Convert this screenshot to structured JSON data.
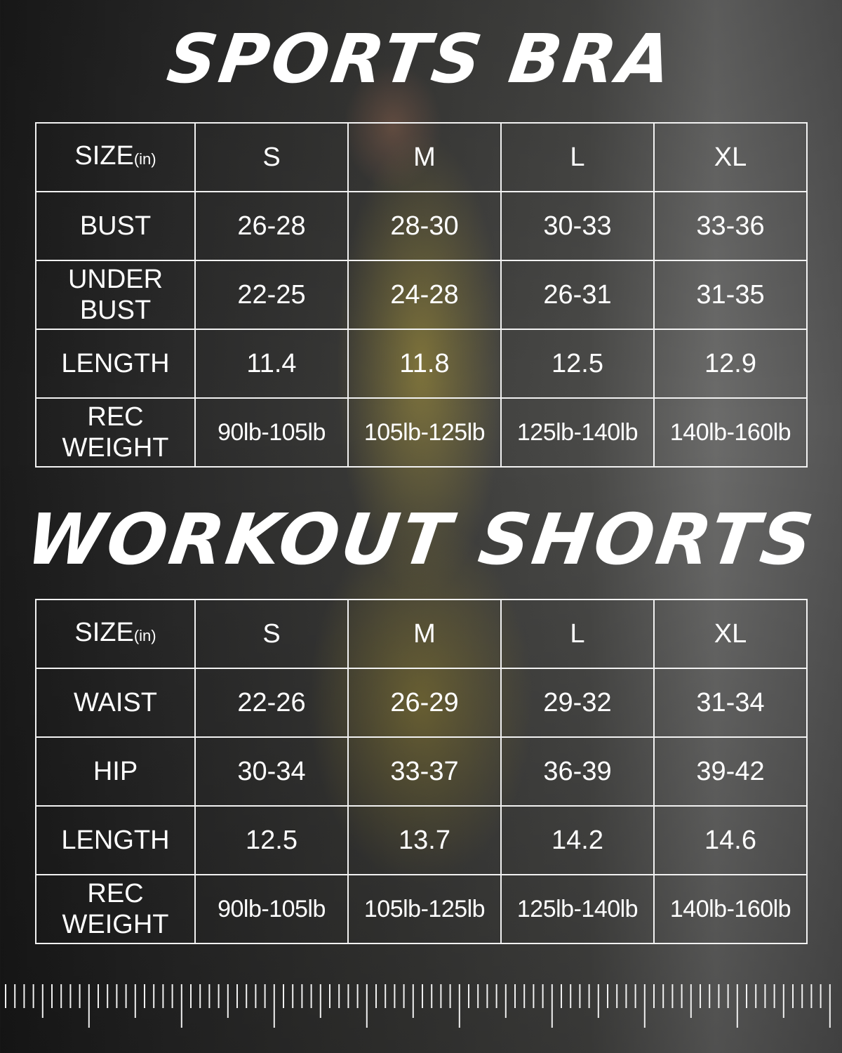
{
  "sports_bra": {
    "title": "SPORTS BRA",
    "header": {
      "size": "SIZE",
      "unit": "(in)",
      "sizes": [
        "S",
        "M",
        "L",
        "XL"
      ]
    },
    "rows": [
      {
        "label": "BUST",
        "values": [
          "26-28",
          "28-30",
          "30-33",
          "33-36"
        ]
      },
      {
        "label": "UNDER BUST",
        "values": [
          "22-25",
          "24-28",
          "26-31",
          "31-35"
        ]
      },
      {
        "label": "LENGTH",
        "values": [
          "11.4",
          "11.8",
          "12.5",
          "12.9"
        ]
      },
      {
        "label": "REC WEIGHT",
        "values": [
          "90lb-105lb",
          "105lb-125lb",
          "125lb-140lb",
          "140lb-160lb"
        ]
      }
    ]
  },
  "workout_shorts": {
    "title": "WORKOUT SHORTS",
    "header": {
      "size": "SIZE",
      "unit": "(in)",
      "sizes": [
        "S",
        "M",
        "L",
        "XL"
      ]
    },
    "rows": [
      {
        "label": "WAIST",
        "values": [
          "22-26",
          "26-29",
          "29-32",
          "31-34"
        ]
      },
      {
        "label": "HIP",
        "values": [
          "30-34",
          "33-37",
          "36-39",
          "39-42"
        ]
      },
      {
        "label": "LENGTH",
        "values": [
          "12.5",
          "13.7",
          "14.2",
          "14.6"
        ]
      },
      {
        "label": "REC WEIGHT",
        "values": [
          "90lb-105lb",
          "105lb-125lb",
          "125lb-140lb",
          "140lb-160lb"
        ]
      }
    ]
  },
  "decoration": {
    "ruler": "ruler-ticks",
    "text_color": "#ffffff"
  }
}
